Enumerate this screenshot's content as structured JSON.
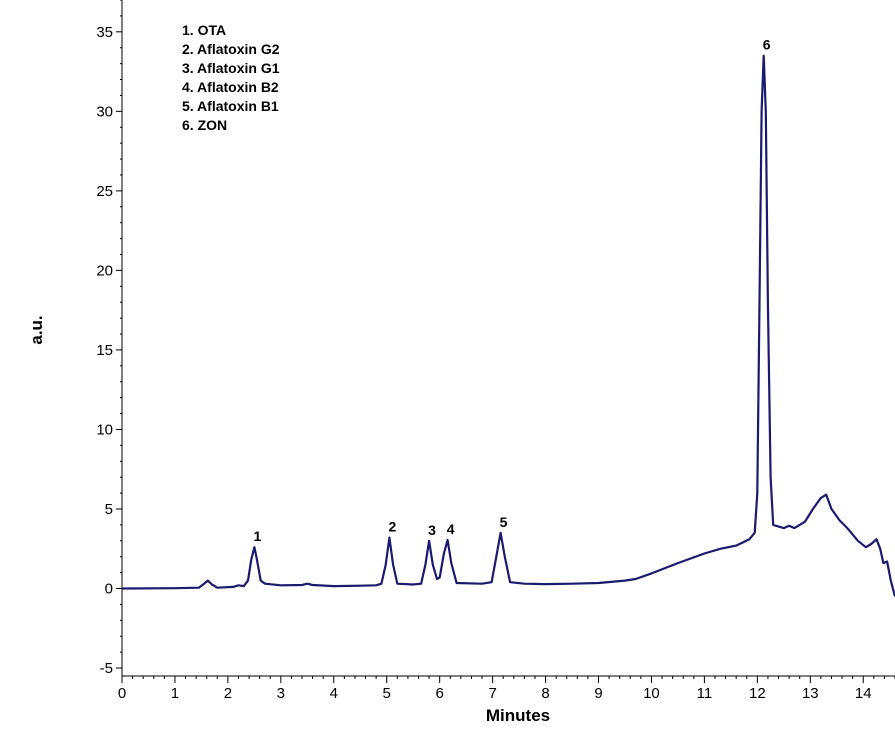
{
  "chart_data": {
    "type": "line",
    "xlabel": "Minutes",
    "ylabel": "a.u.",
    "xlim": [
      0,
      14.6
    ],
    "ylim": [
      -5.5,
      37
    ],
    "x_ticks": [
      0,
      1,
      2,
      3,
      4,
      5,
      6,
      7,
      8,
      9,
      10,
      11,
      12,
      13,
      14
    ],
    "y_ticks": [
      -5,
      0,
      5,
      10,
      15,
      20,
      25,
      30,
      35
    ],
    "line_color": "#1a1a6e",
    "legend": {
      "placement": "top-left",
      "entries": [
        "1. OTA",
        "2. Aflatoxin G2",
        "3. Aflatoxin G1",
        "4. Aflatoxin B2",
        "5. Aflatoxin B1",
        "6. ZON"
      ]
    },
    "peak_labels": [
      {
        "label": "1",
        "x": 2.5,
        "y": 2.6
      },
      {
        "label": "2",
        "x": 5.05,
        "y": 3.2
      },
      {
        "label": "3",
        "x": 5.8,
        "y": 3.0
      },
      {
        "label": "4",
        "x": 6.15,
        "y": 3.05
      },
      {
        "label": "5",
        "x": 7.15,
        "y": 3.5
      },
      {
        "label": "6",
        "x": 12.12,
        "y": 33.5
      }
    ],
    "series": [
      {
        "points": [
          [
            0,
            0.0
          ],
          [
            1.0,
            0.02
          ],
          [
            1.45,
            0.05
          ],
          [
            1.55,
            0.3
          ],
          [
            1.62,
            0.5
          ],
          [
            1.7,
            0.25
          ],
          [
            1.8,
            0.05
          ],
          [
            2.1,
            0.1
          ],
          [
            2.2,
            0.2
          ],
          [
            2.3,
            0.15
          ],
          [
            2.38,
            0.5
          ],
          [
            2.44,
            1.8
          ],
          [
            2.5,
            2.6
          ],
          [
            2.55,
            1.8
          ],
          [
            2.62,
            0.5
          ],
          [
            2.7,
            0.3
          ],
          [
            3.0,
            0.2
          ],
          [
            3.4,
            0.22
          ],
          [
            3.5,
            0.3
          ],
          [
            3.6,
            0.22
          ],
          [
            4.0,
            0.15
          ],
          [
            4.5,
            0.18
          ],
          [
            4.8,
            0.2
          ],
          [
            4.9,
            0.3
          ],
          [
            4.98,
            1.5
          ],
          [
            5.05,
            3.2
          ],
          [
            5.12,
            1.5
          ],
          [
            5.2,
            0.3
          ],
          [
            5.5,
            0.25
          ],
          [
            5.65,
            0.3
          ],
          [
            5.73,
            1.5
          ],
          [
            5.8,
            3.0
          ],
          [
            5.87,
            1.5
          ],
          [
            5.95,
            0.6
          ],
          [
            6.0,
            0.7
          ],
          [
            6.08,
            2.2
          ],
          [
            6.15,
            3.05
          ],
          [
            6.22,
            1.6
          ],
          [
            6.32,
            0.35
          ],
          [
            6.8,
            0.3
          ],
          [
            6.98,
            0.4
          ],
          [
            7.07,
            2.0
          ],
          [
            7.15,
            3.5
          ],
          [
            7.23,
            2.0
          ],
          [
            7.33,
            0.4
          ],
          [
            7.6,
            0.3
          ],
          [
            8.0,
            0.28
          ],
          [
            8.5,
            0.3
          ],
          [
            9.0,
            0.35
          ],
          [
            9.5,
            0.5
          ],
          [
            9.7,
            0.6
          ],
          [
            10.0,
            0.95
          ],
          [
            10.5,
            1.6
          ],
          [
            11.0,
            2.2
          ],
          [
            11.3,
            2.5
          ],
          [
            11.6,
            2.7
          ],
          [
            11.85,
            3.1
          ],
          [
            11.95,
            3.5
          ],
          [
            12.0,
            6.0
          ],
          [
            12.04,
            18.0
          ],
          [
            12.08,
            30.0
          ],
          [
            12.12,
            33.5
          ],
          [
            12.16,
            30.0
          ],
          [
            12.2,
            18.0
          ],
          [
            12.25,
            7.0
          ],
          [
            12.3,
            4.0
          ],
          [
            12.5,
            3.8
          ],
          [
            12.6,
            3.95
          ],
          [
            12.7,
            3.8
          ],
          [
            12.9,
            4.2
          ],
          [
            13.05,
            5.0
          ],
          [
            13.2,
            5.7
          ],
          [
            13.3,
            5.9
          ],
          [
            13.4,
            5.0
          ],
          [
            13.55,
            4.3
          ],
          [
            13.7,
            3.8
          ],
          [
            13.9,
            3.0
          ],
          [
            14.05,
            2.6
          ],
          [
            14.15,
            2.8
          ],
          [
            14.25,
            3.1
          ],
          [
            14.32,
            2.5
          ],
          [
            14.38,
            1.6
          ],
          [
            14.45,
            1.7
          ],
          [
            14.52,
            0.5
          ],
          [
            14.6,
            -0.5
          ]
        ]
      }
    ]
  }
}
